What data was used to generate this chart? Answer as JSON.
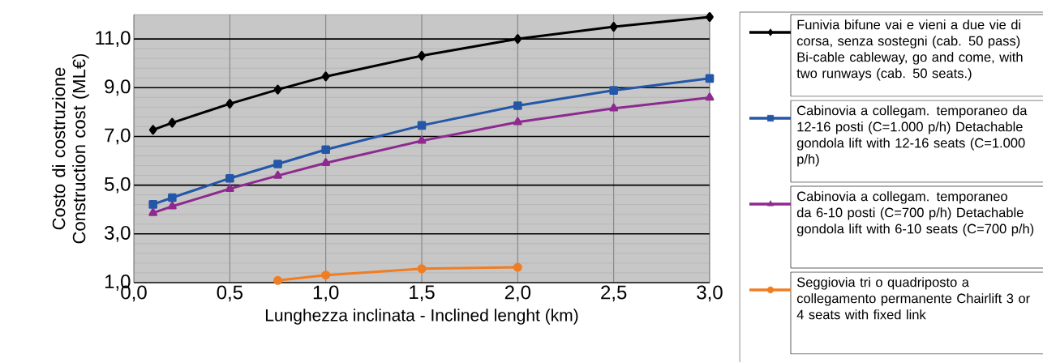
{
  "chart_data": {
    "type": "line",
    "xlabel": "Lunghezza inclinata - Inclined lenght (km)",
    "ylabel": "Costo di costruzione Construction cost (ML€)",
    "x": [
      0.1,
      0.2,
      0.5,
      0.75,
      1.0,
      1.5,
      2.0,
      2.5,
      3.0
    ],
    "series": [
      {
        "name": "Funivia bifune vai e vieni a due vie di corsa, senza sostegni (cab. 50 pass) Bi-cable cableway, go and come, with two runways (cab. 50 seats.)",
        "color": "#000000",
        "marker": "diamond",
        "values": [
          7.27,
          7.56,
          8.34,
          8.92,
          9.46,
          10.31,
          11.0,
          11.5,
          11.9
        ]
      },
      {
        "name": "Cabinovia a collegam. temporaneo da 12-16 posti (C=1.000 p/h) Detachable gondola lift with 12-16 seats (C=1.000 p/h)",
        "color": "#2457a8",
        "marker": "square",
        "values": [
          4.21,
          4.49,
          5.28,
          5.87,
          6.46,
          7.45,
          8.26,
          8.89,
          9.38
        ]
      },
      {
        "name": "Cabinovia a collegam. temporaneo da 6-10 posti (C=700 p/h) Detachable gondola lift with 6-10 seats (C=700 p/h)",
        "color": "#8e2a8f",
        "marker": "triangle",
        "values": [
          3.86,
          4.13,
          4.85,
          5.39,
          5.91,
          6.82,
          7.59,
          8.15,
          8.59
        ]
      },
      {
        "name": "Seggiovia tri o quadriposto a collegamento permanente Chairlift 3 or 4 seats  with fixed link",
        "color": "#f07d22",
        "marker": "circle",
        "x": [
          0.75,
          1.0,
          1.5,
          2.0
        ],
        "values": [
          1.09,
          1.31,
          1.57,
          1.63
        ]
      }
    ],
    "xlim": [
      0,
      3
    ],
    "ylim": [
      1,
      12
    ],
    "xticks": [
      {
        "value": 0,
        "label": "0,0"
      },
      {
        "value": 0.5,
        "label": "0,5"
      },
      {
        "value": 1,
        "label": "1,0"
      },
      {
        "value": 1.5,
        "label": "1,5"
      },
      {
        "value": 2,
        "label": "2,0"
      },
      {
        "value": 2.5,
        "label": "2,5"
      },
      {
        "value": 3,
        "label": "3,0"
      }
    ],
    "yticks": [
      {
        "value": 1,
        "label": "1,0"
      },
      {
        "value": 3,
        "label": "3,0"
      },
      {
        "value": 5,
        "label": "5,0"
      },
      {
        "value": 7,
        "label": "7,0"
      },
      {
        "value": 9,
        "label": "9,0"
      },
      {
        "value": 11,
        "label": "11,0"
      }
    ],
    "grid": true,
    "legend": "right",
    "line_style": "solid"
  }
}
